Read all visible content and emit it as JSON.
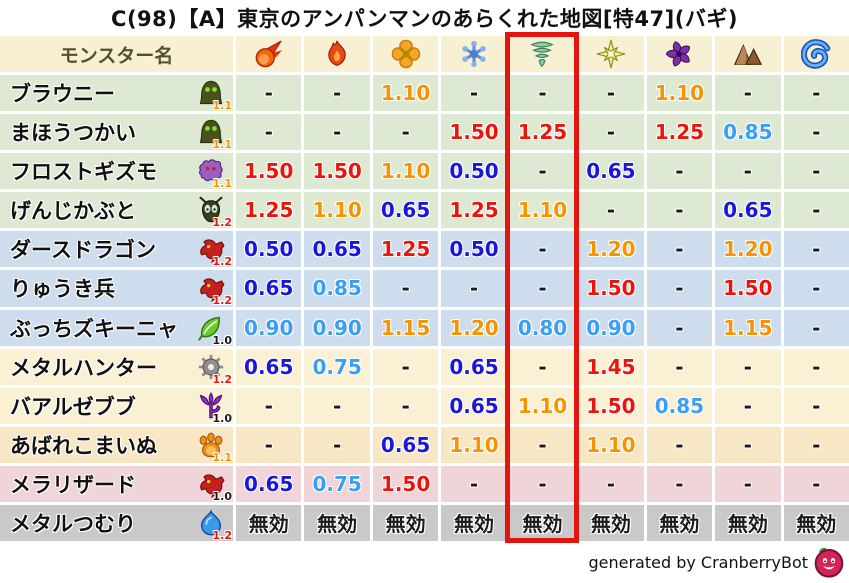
{
  "title": "C(98)【A】東京のアンパンマンのあらくれた地図[特47](バギ)",
  "footer": {
    "credit": "generated by CranberryBot",
    "icon": "cranberry-bot-icon"
  },
  "colors": {
    "highlight_box": "#e31510",
    "header_bg": "#f7f0d2",
    "header_text": "#55502a",
    "value": {
      "strong_up": "#e8150d",
      "up": "#f59300",
      "down": "#3b9ef5",
      "strong_down": "#1a17d8",
      "neutral": "#1a1a1a"
    },
    "weight": {
      "1.0": "#1a1a1a",
      "1.1": "#f59300",
      "1.2": "#e8150d"
    },
    "family": {
      "green": "#dde9d2",
      "blue": "#cddded",
      "cream": "#faf0d4",
      "tan": "#f7e7c5",
      "pink": "#efd4d8",
      "gray": "#c9c9c9"
    }
  },
  "table": {
    "name_header": "モンスター名",
    "immune_label": "無効",
    "highlight_column_index": 4,
    "element_columns": [
      "mera-fire-icon",
      "gira-blaze-icon",
      "io-explosion-icon",
      "hyado-ice-icon",
      "bagi-wind-icon",
      "dein-light-icon",
      "dorma-dark-icon",
      "jibaria-earth-icon",
      "water-wave-icon"
    ],
    "monsters": [
      {
        "name": "ブラウニー",
        "icon": "hooded-blob-monster-icon",
        "weight": "1.1",
        "family": "green",
        "values": [
          "-",
          "-",
          "1.10",
          "-",
          "-",
          "-",
          "1.10",
          "-",
          "-"
        ]
      },
      {
        "name": "まほうつかい",
        "icon": "hooded-blob-monster-icon",
        "weight": "1.1",
        "family": "green",
        "values": [
          "-",
          "-",
          "-",
          "1.50",
          "1.25",
          "-",
          "1.25",
          "0.85",
          "-"
        ]
      },
      {
        "name": "フロストギズモ",
        "icon": "ghost-monster-icon",
        "weight": "1.1",
        "family": "green",
        "values": [
          "1.50",
          "1.50",
          "1.10",
          "0.50",
          "-",
          "0.65",
          "-",
          "-",
          "-"
        ]
      },
      {
        "name": "げんじかぶと",
        "icon": "beetle-monster-icon",
        "weight": "1.2",
        "family": "green",
        "values": [
          "1.25",
          "1.10",
          "0.65",
          "1.25",
          "1.10",
          "-",
          "-",
          "0.65",
          "-"
        ]
      },
      {
        "name": "ダースドラゴン",
        "icon": "dragon-head-monster-icon",
        "weight": "1.2",
        "family": "blue",
        "values": [
          "0.50",
          "0.65",
          "1.25",
          "0.50",
          "-",
          "1.20",
          "-",
          "1.20",
          "-"
        ]
      },
      {
        "name": "りゅうき兵",
        "icon": "dragon-head-monster-icon",
        "weight": "1.2",
        "family": "blue",
        "values": [
          "0.65",
          "0.85",
          "-",
          "-",
          "-",
          "1.50",
          "-",
          "1.50",
          "-"
        ]
      },
      {
        "name": "ぶっちズキーニャ",
        "icon": "leaf-monster-icon",
        "weight": "1.0",
        "family": "blue",
        "values": [
          "0.90",
          "0.90",
          "1.15",
          "1.20",
          "0.80",
          "0.90",
          "-",
          "1.15",
          "-"
        ]
      },
      {
        "name": "メタルハンター",
        "icon": "gear-monster-icon",
        "weight": "1.2",
        "family": "cream",
        "values": [
          "0.65",
          "0.75",
          "-",
          "0.65",
          "-",
          "1.45",
          "-",
          "-",
          "-"
        ]
      },
      {
        "name": "バアルゼブブ",
        "icon": "demon-trident-monster-icon",
        "weight": "1.0",
        "family": "cream",
        "values": [
          "-",
          "-",
          "-",
          "0.65",
          "1.10",
          "1.50",
          "0.85",
          "-",
          "-"
        ]
      },
      {
        "name": "あばれこまいぬ",
        "icon": "paw-monster-icon",
        "weight": "1.1",
        "family": "tan",
        "values": [
          "-",
          "-",
          "0.65",
          "1.10",
          "-",
          "1.10",
          "-",
          "-",
          "-"
        ]
      },
      {
        "name": "メラリザード",
        "icon": "dragon-head-monster-icon",
        "weight": "1.0",
        "family": "pink",
        "values": [
          "0.65",
          "0.75",
          "1.50",
          "-",
          "-",
          "-",
          "-",
          "-",
          "-"
        ]
      },
      {
        "name": "メタルつむり",
        "icon": "slime-monster-icon",
        "weight": "1.2",
        "family": "gray",
        "values": [
          "無効",
          "無効",
          "無効",
          "無効",
          "無効",
          "無効",
          "無効",
          "無効",
          "無効"
        ]
      }
    ]
  }
}
